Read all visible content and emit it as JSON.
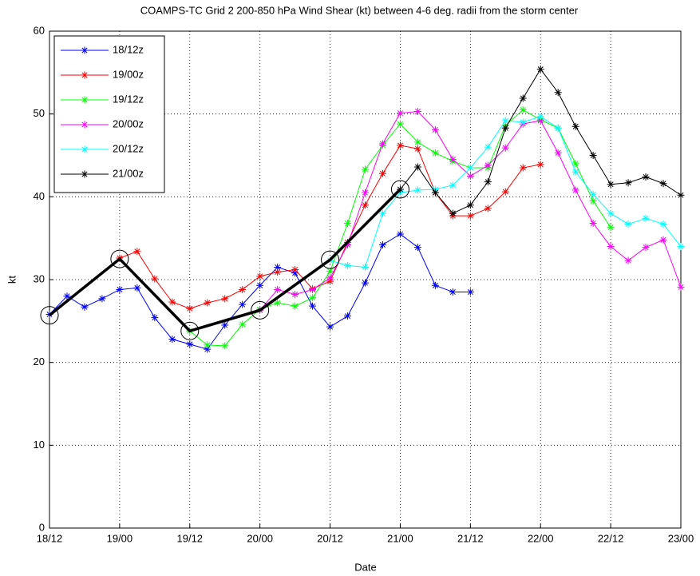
{
  "chart_data": {
    "type": "line",
    "title": "COAMPS-TC Grid 2 200-850 hPa Wind Shear (kt) between 4-6 deg. radii from the storm center",
    "x_label": "Date",
    "y_label": "kt",
    "xlim": [
      0,
      108
    ],
    "ylim": [
      0,
      60
    ],
    "xticks": [
      {
        "value": 0,
        "label": "18/12"
      },
      {
        "value": 12,
        "label": "19/00"
      },
      {
        "value": 24,
        "label": "19/12"
      },
      {
        "value": 36,
        "label": "20/00"
      },
      {
        "value": 48,
        "label": "20/12"
      },
      {
        "value": 60,
        "label": "21/00"
      },
      {
        "value": 72,
        "label": "21/12"
      },
      {
        "value": 84,
        "label": "22/00"
      },
      {
        "value": 96,
        "label": "22/12"
      },
      {
        "value": 108,
        "label": "23/00"
      }
    ],
    "yticks": [
      0,
      10,
      20,
      30,
      40,
      50,
      60
    ],
    "grid": true,
    "legend": "upper left",
    "series": [
      {
        "name": "18/12z",
        "color": "#0000ff",
        "x": [
          0,
          3,
          6,
          9,
          12,
          15,
          18,
          21,
          24,
          27,
          30,
          33,
          36,
          39,
          42,
          45,
          48,
          51,
          54,
          57,
          60,
          63,
          66,
          69,
          72
        ],
        "values": [
          25.8,
          28,
          26.7,
          27.7,
          28.8,
          29,
          25.4,
          22.8,
          22.2,
          21.6,
          24.5,
          27,
          29.3,
          31.5,
          30.8,
          26.8,
          24.3,
          25.6,
          29.6,
          34.2,
          35.5,
          33.9,
          29.3,
          28.5,
          28.5
        ]
      },
      {
        "name": "19/00z",
        "color": "#ff0000",
        "x": [
          12,
          15,
          18,
          21,
          24,
          27,
          30,
          33,
          36,
          39,
          42,
          45,
          48,
          51,
          54,
          57,
          60,
          63,
          66,
          69,
          72,
          75,
          78,
          81,
          84
        ],
        "values": [
          32.6,
          33.4,
          30.1,
          27.3,
          26.5,
          27.2,
          27.7,
          28.8,
          30.4,
          30.9,
          31.2,
          28.9,
          29.8,
          34.5,
          39,
          42.8,
          46.2,
          45.8,
          40.5,
          37.7,
          37.7,
          38.6,
          40.6,
          43.5,
          43.9
        ]
      },
      {
        "name": "19/12z",
        "color": "#00ff00",
        "x": [
          24,
          27,
          30,
          33,
          36,
          39,
          42,
          45,
          48,
          51,
          54,
          57,
          60,
          63,
          66,
          69,
          72,
          75,
          78,
          81,
          84,
          87,
          90,
          93,
          96
        ],
        "values": [
          23.8,
          22.1,
          22,
          24.6,
          26.4,
          27.2,
          26.8,
          27.8,
          31,
          36.8,
          43.3,
          46.2,
          48.8,
          46.6,
          45.3,
          44.3,
          43.5,
          43.5,
          48.6,
          50.5,
          49.3,
          48.3,
          44,
          39.5,
          36.3
        ]
      },
      {
        "name": "20/00z",
        "color": "#ff00ff",
        "x": [
          36,
          39,
          42,
          45,
          48,
          51,
          54,
          57,
          60,
          63,
          66,
          69,
          72,
          75,
          78,
          81,
          84,
          87,
          90,
          93,
          96,
          99,
          102,
          105,
          108
        ],
        "values": [
          26.3,
          28.8,
          28.2,
          28.8,
          30.2,
          34.2,
          40.5,
          46.4,
          50.1,
          50.3,
          48.1,
          44.5,
          42.5,
          43.8,
          45.9,
          48.8,
          49.2,
          45.3,
          40.8,
          36.8,
          34,
          32.3,
          33.9,
          34.8,
          29.1
        ]
      },
      {
        "name": "20/12z",
        "color": "#00ffff",
        "x": [
          48,
          51,
          54,
          57,
          60,
          63,
          66,
          69,
          72,
          75,
          78,
          81,
          84,
          87,
          90,
          93,
          96,
          99,
          102,
          105,
          108
        ],
        "values": [
          32.3,
          31.7,
          31.5,
          38,
          40.5,
          40.8,
          40.9,
          41.4,
          43.5,
          46,
          49.2,
          49,
          49.7,
          48.3,
          43,
          40.3,
          38,
          36.7,
          37.4,
          36.7,
          34
        ]
      },
      {
        "name": "21/00z",
        "color": "#000000",
        "x": [
          60,
          63,
          66,
          69,
          72,
          75,
          78,
          81,
          84,
          87,
          90,
          93,
          96,
          99,
          102,
          105,
          108
        ],
        "values": [
          40.9,
          43.6,
          40.5,
          38,
          39,
          41.8,
          48.3,
          51.9,
          55.4,
          52.6,
          48.5,
          45,
          41.5,
          41.7,
          42.4,
          41.6,
          40.2
        ]
      }
    ],
    "analysis": {
      "color": "#000000",
      "x": [
        0,
        12,
        24,
        36,
        48,
        60
      ],
      "values": [
        25.7,
        32.5,
        23.8,
        26.3,
        32.4,
        40.9
      ]
    }
  }
}
